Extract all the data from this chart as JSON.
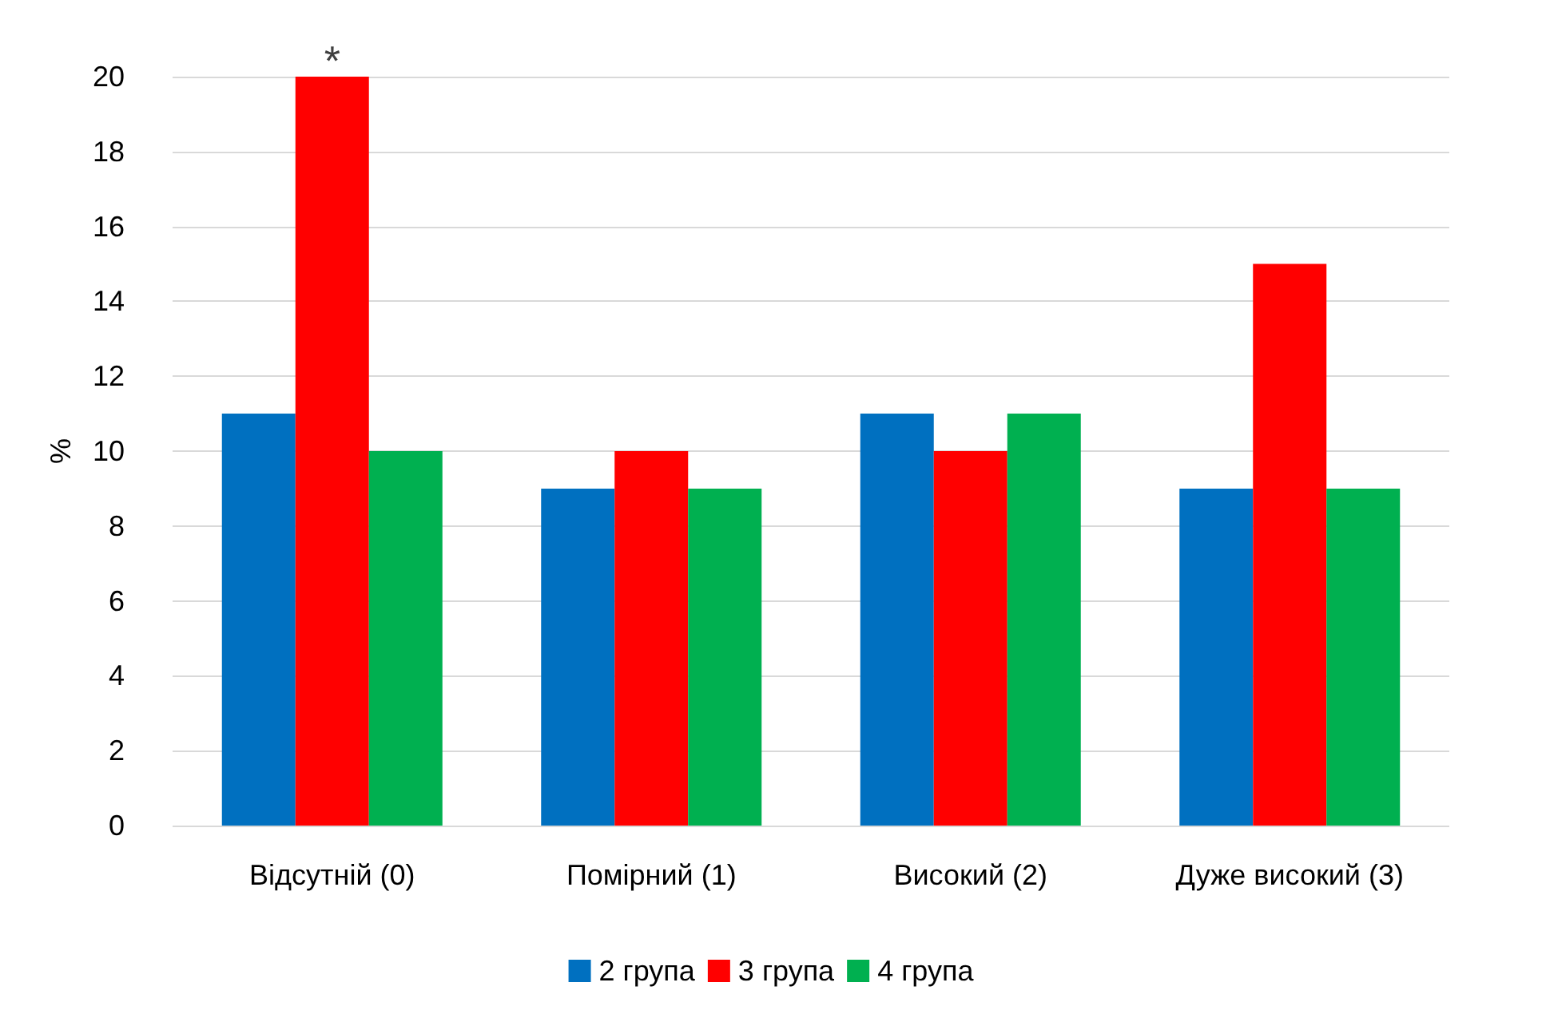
{
  "chart_data": {
    "type": "bar",
    "ylabel": "%",
    "categories": [
      "Відсутній (0)",
      "Помірний (1)",
      "Високий (2)",
      "Дуже високий (3)"
    ],
    "series": [
      {
        "name": "2 група",
        "color": "#0070c0",
        "values": [
          11,
          9,
          11,
          9
        ]
      },
      {
        "name": "3 група",
        "color": "#ff0000",
        "values": [
          20,
          10,
          10,
          15
        ]
      },
      {
        "name": "4 група",
        "color": "#00b050",
        "values": [
          10,
          9,
          11,
          9
        ]
      }
    ],
    "ylim": [
      0,
      20
    ],
    "yticks": [
      0,
      2,
      4,
      6,
      8,
      10,
      12,
      14,
      16,
      18,
      20
    ],
    "grid": "y",
    "legend": "bottom",
    "annotations": [
      {
        "text": "*",
        "x": "Відсутній (0)",
        "y": 20
      }
    ]
  }
}
